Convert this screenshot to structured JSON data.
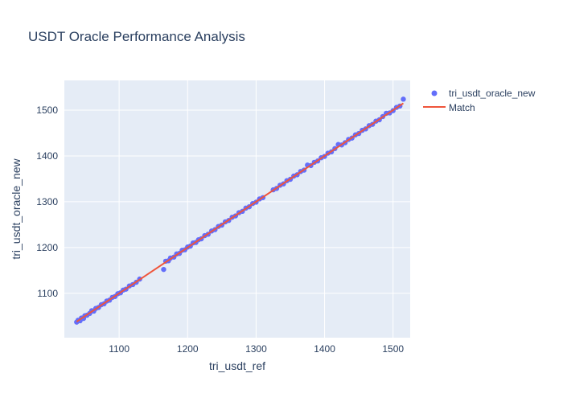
{
  "chart_data": {
    "type": "scatter",
    "title": "USDT Oracle Performance Analysis",
    "xlabel": "tri_usdt_ref",
    "ylabel": "tri_usdt_oracle_new",
    "xlim": [
      1020,
      1525
    ],
    "ylim": [
      1003,
      1565
    ],
    "x_ticks": [
      1100,
      1200,
      1300,
      1400,
      1500
    ],
    "y_ticks": [
      1100,
      1200,
      1300,
      1400,
      1500
    ],
    "grid": true,
    "legend_position": "top-right",
    "colors": {
      "scatter": "#636efa",
      "line": "#ef553b",
      "plot_bg": "#e5ecf6",
      "grid": "#ffffff",
      "text": "#2a3f5f"
    },
    "series": [
      {
        "name": "tri_usdt_oracle_new",
        "mode": "markers",
        "x": [
          1038,
          1040,
          1043,
          1045,
          1048,
          1050,
          1053,
          1057,
          1060,
          1063,
          1066,
          1070,
          1074,
          1078,
          1082,
          1086,
          1090,
          1094,
          1098,
          1102,
          1106,
          1110,
          1115,
          1120,
          1125,
          1130,
          1165,
          1168,
          1172,
          1175,
          1180,
          1184,
          1188,
          1192,
          1196,
          1200,
          1204,
          1208,
          1212,
          1216,
          1220,
          1225,
          1230,
          1235,
          1240,
          1245,
          1250,
          1255,
          1260,
          1265,
          1270,
          1275,
          1280,
          1285,
          1290,
          1295,
          1300,
          1305,
          1310,
          1325,
          1330,
          1335,
          1340,
          1345,
          1350,
          1355,
          1360,
          1365,
          1370,
          1375,
          1380,
          1385,
          1390,
          1395,
          1400,
          1405,
          1410,
          1415,
          1420,
          1425,
          1430,
          1435,
          1440,
          1445,
          1450,
          1455,
          1460,
          1465,
          1470,
          1475,
          1480,
          1485,
          1490,
          1495,
          1500,
          1505,
          1510,
          1515
        ],
        "y": [
          1037,
          1041,
          1040,
          1046,
          1045,
          1051,
          1052,
          1056,
          1062,
          1061,
          1067,
          1069,
          1075,
          1077,
          1083,
          1085,
          1091,
          1093,
          1099,
          1101,
          1107,
          1109,
          1116,
          1119,
          1124,
          1131,
          1152,
          1170,
          1171,
          1177,
          1179,
          1186,
          1187,
          1194,
          1195,
          1201,
          1203,
          1210,
          1211,
          1217,
          1219,
          1226,
          1229,
          1236,
          1239,
          1246,
          1249,
          1256,
          1259,
          1266,
          1269,
          1276,
          1279,
          1286,
          1289,
          1296,
          1299,
          1306,
          1309,
          1326,
          1329,
          1336,
          1339,
          1346,
          1349,
          1356,
          1359,
          1366,
          1369,
          1380,
          1379,
          1386,
          1389,
          1396,
          1399,
          1406,
          1409,
          1416,
          1425,
          1424,
          1429,
          1436,
          1439,
          1446,
          1449,
          1456,
          1459,
          1466,
          1469,
          1476,
          1479,
          1486,
          1493,
          1494,
          1499,
          1506,
          1509,
          1524
        ]
      },
      {
        "name": "Match",
        "mode": "lines",
        "x": [
          1038,
          1515
        ],
        "y": [
          1038,
          1515
        ]
      }
    ]
  }
}
